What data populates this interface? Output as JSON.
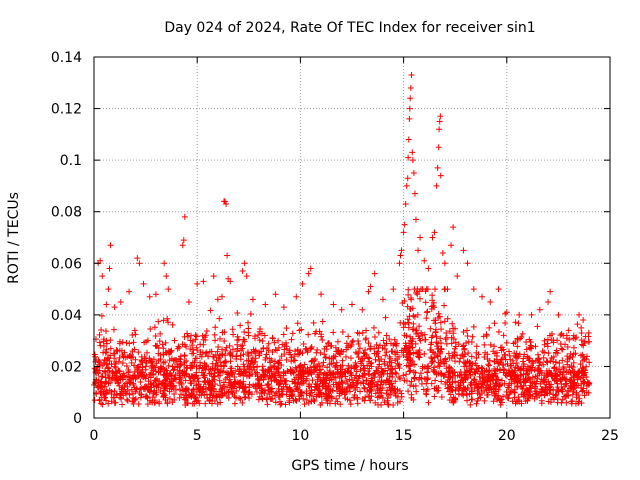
{
  "chart_data": {
    "type": "scatter",
    "title": "Day 024 of 2024, Rate Of TEC Index for receiver sin1",
    "xlabel": "GPS time / hours",
    "ylabel": "ROTI / TECUs",
    "xlim": [
      0,
      25
    ],
    "ylim": [
      0,
      0.14
    ],
    "x_ticks": [
      0,
      5,
      10,
      15,
      20,
      25
    ],
    "x_tick_labels": [
      "0",
      "5",
      "10",
      "15",
      "20",
      "25"
    ],
    "y_ticks": [
      0,
      0.02,
      0.04,
      0.06,
      0.08,
      0.1,
      0.12,
      0.14
    ],
    "y_tick_labels": [
      "0",
      "0.02",
      "0.04",
      "0.06",
      "0.08",
      "0.1",
      "0.12",
      "0.14"
    ],
    "grid": true,
    "marker": "+",
    "series_color": "#ff0000",
    "data_extent": {
      "x_min": 0,
      "x_max": 24
    },
    "outliers": [
      {
        "x": 0.2,
        "y": 0.06
      },
      {
        "x": 0.3,
        "y": 0.061
      },
      {
        "x": 0.4,
        "y": 0.055
      },
      {
        "x": 0.6,
        "y": 0.044
      },
      {
        "x": 0.7,
        "y": 0.05
      },
      {
        "x": 0.75,
        "y": 0.058
      },
      {
        "x": 0.8,
        "y": 0.067
      },
      {
        "x": 1.0,
        "y": 0.043
      },
      {
        "x": 1.3,
        "y": 0.045
      },
      {
        "x": 1.7,
        "y": 0.049
      },
      {
        "x": 2.1,
        "y": 0.062
      },
      {
        "x": 2.2,
        "y": 0.06
      },
      {
        "x": 2.4,
        "y": 0.052
      },
      {
        "x": 2.7,
        "y": 0.047
      },
      {
        "x": 3.0,
        "y": 0.048
      },
      {
        "x": 3.4,
        "y": 0.06
      },
      {
        "x": 3.5,
        "y": 0.055
      },
      {
        "x": 3.6,
        "y": 0.05
      },
      {
        "x": 4.3,
        "y": 0.067
      },
      {
        "x": 4.35,
        "y": 0.069
      },
      {
        "x": 4.4,
        "y": 0.078
      },
      {
        "x": 4.6,
        "y": 0.045
      },
      {
        "x": 5.0,
        "y": 0.052
      },
      {
        "x": 5.3,
        "y": 0.053
      },
      {
        "x": 6.0,
        "y": 0.046
      },
      {
        "x": 5.8,
        "y": 0.055
      },
      {
        "x": 6.2,
        "y": 0.047
      },
      {
        "x": 6.3,
        "y": 0.084
      },
      {
        "x": 6.35,
        "y": 0.084
      },
      {
        "x": 6.4,
        "y": 0.083
      },
      {
        "x": 6.45,
        "y": 0.063
      },
      {
        "x": 6.5,
        "y": 0.054
      },
      {
        "x": 6.6,
        "y": 0.053
      },
      {
        "x": 7.2,
        "y": 0.057
      },
      {
        "x": 7.3,
        "y": 0.06
      },
      {
        "x": 7.4,
        "y": 0.055
      },
      {
        "x": 7.7,
        "y": 0.046
      },
      {
        "x": 8.3,
        "y": 0.044
      },
      {
        "x": 8.8,
        "y": 0.048
      },
      {
        "x": 9.2,
        "y": 0.043
      },
      {
        "x": 9.8,
        "y": 0.047
      },
      {
        "x": 10.1,
        "y": 0.052
      },
      {
        "x": 10.4,
        "y": 0.056
      },
      {
        "x": 10.5,
        "y": 0.058
      },
      {
        "x": 11.0,
        "y": 0.048
      },
      {
        "x": 11.6,
        "y": 0.044
      },
      {
        "x": 12.0,
        "y": 0.042
      },
      {
        "x": 12.5,
        "y": 0.044
      },
      {
        "x": 13.0,
        "y": 0.042
      },
      {
        "x": 13.3,
        "y": 0.049
      },
      {
        "x": 13.4,
        "y": 0.051
      },
      {
        "x": 13.6,
        "y": 0.056
      },
      {
        "x": 14.0,
        "y": 0.046
      },
      {
        "x": 14.5,
        "y": 0.05
      },
      {
        "x": 14.8,
        "y": 0.06
      },
      {
        "x": 14.85,
        "y": 0.063
      },
      {
        "x": 14.9,
        "y": 0.065
      },
      {
        "x": 15.0,
        "y": 0.072
      },
      {
        "x": 15.05,
        "y": 0.075
      },
      {
        "x": 15.1,
        "y": 0.083
      },
      {
        "x": 15.15,
        "y": 0.09
      },
      {
        "x": 15.2,
        "y": 0.093
      },
      {
        "x": 15.22,
        "y": 0.101
      },
      {
        "x": 15.25,
        "y": 0.108
      },
      {
        "x": 15.28,
        "y": 0.116
      },
      {
        "x": 15.3,
        "y": 0.12
      },
      {
        "x": 15.32,
        "y": 0.124
      },
      {
        "x": 15.35,
        "y": 0.128
      },
      {
        "x": 15.38,
        "y": 0.133
      },
      {
        "x": 15.42,
        "y": 0.103
      },
      {
        "x": 15.45,
        "y": 0.1
      },
      {
        "x": 15.5,
        "y": 0.095
      },
      {
        "x": 15.55,
        "y": 0.087
      },
      {
        "x": 15.6,
        "y": 0.077
      },
      {
        "x": 15.7,
        "y": 0.065
      },
      {
        "x": 15.8,
        "y": 0.07
      },
      {
        "x": 16.0,
        "y": 0.061
      },
      {
        "x": 16.2,
        "y": 0.058
      },
      {
        "x": 16.4,
        "y": 0.07
      },
      {
        "x": 16.5,
        "y": 0.072
      },
      {
        "x": 16.6,
        "y": 0.09
      },
      {
        "x": 16.65,
        "y": 0.097
      },
      {
        "x": 16.7,
        "y": 0.105
      },
      {
        "x": 16.72,
        "y": 0.112
      },
      {
        "x": 16.75,
        "y": 0.115
      },
      {
        "x": 16.78,
        "y": 0.117
      },
      {
        "x": 16.8,
        "y": 0.094
      },
      {
        "x": 16.9,
        "y": 0.064
      },
      {
        "x": 17.0,
        "y": 0.06
      },
      {
        "x": 17.3,
        "y": 0.067
      },
      {
        "x": 17.4,
        "y": 0.074
      },
      {
        "x": 17.6,
        "y": 0.055
      },
      {
        "x": 17.9,
        "y": 0.065
      },
      {
        "x": 18.1,
        "y": 0.06
      },
      {
        "x": 18.4,
        "y": 0.05
      },
      {
        "x": 18.8,
        "y": 0.047
      },
      {
        "x": 19.2,
        "y": 0.045
      },
      {
        "x": 19.6,
        "y": 0.05
      },
      {
        "x": 20.0,
        "y": 0.041
      },
      {
        "x": 20.6,
        "y": 0.04
      },
      {
        "x": 21.2,
        "y": 0.04
      },
      {
        "x": 21.6,
        "y": 0.042
      },
      {
        "x": 22.0,
        "y": 0.045
      },
      {
        "x": 22.1,
        "y": 0.049
      },
      {
        "x": 22.5,
        "y": 0.04
      },
      {
        "x": 23.0,
        "y": 0.034
      },
      {
        "x": 23.5,
        "y": 0.04
      },
      {
        "x": 23.7,
        "y": 0.038
      }
    ]
  }
}
